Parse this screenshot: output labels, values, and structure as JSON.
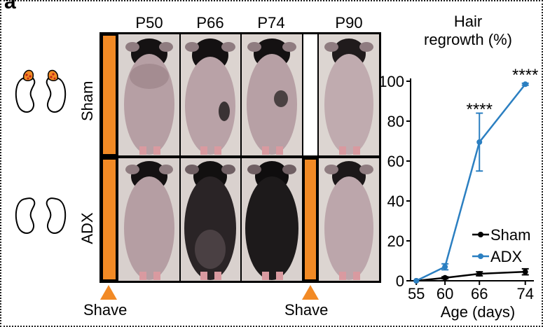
{
  "panel_label": "a",
  "columns": [
    "P50",
    "P66",
    "P74",
    "P90"
  ],
  "rows": [
    "Sham",
    "ADX"
  ],
  "shave_label": "Shave",
  "colors": {
    "orange": "#f28a25",
    "sham_line": "#000000",
    "adx_line": "#2b7fc1",
    "sham_fur": "#b7a0a6",
    "adx_fur": "#1d1a1b"
  },
  "chart_data": {
    "type": "line",
    "title": "Hair regrowth (%)",
    "title_lines": [
      "Hair",
      "regrowth (%)"
    ],
    "xlabel": "Age (days)",
    "ylabel": "",
    "x": [
      55,
      60,
      66,
      74
    ],
    "x_ticks": [
      "55",
      "60",
      "66",
      "74"
    ],
    "ylim": [
      0,
      100
    ],
    "y_ticks": [
      "0",
      "20",
      "40",
      "60",
      "80",
      "100"
    ],
    "series": [
      {
        "name": "Sham",
        "values": [
          0,
          1.5,
          3.5,
          4.5
        ],
        "errors": [
          0,
          0.5,
          1,
          1.5
        ],
        "color": "#000000"
      },
      {
        "name": "ADX",
        "values": [
          0,
          7,
          69.5,
          98.5
        ],
        "errors": [
          0,
          1.5,
          14.5,
          0.5
        ],
        "color": "#2b7fc1"
      }
    ],
    "annotations": [
      {
        "x": 66,
        "text": "****"
      },
      {
        "x": 74,
        "text": "****"
      }
    ],
    "legend_position": "bottom-right",
    "grid": false
  }
}
